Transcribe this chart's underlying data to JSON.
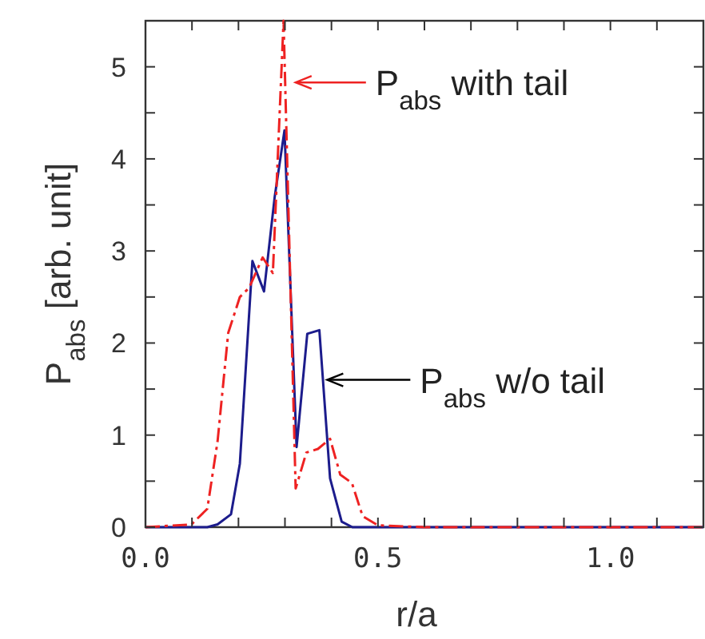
{
  "chart_data": {
    "type": "line",
    "xlabel": "r/a",
    "ylabel": "P$_{abs}$ [arb. unit]",
    "xlim": [
      0,
      1.2
    ],
    "ylim": [
      0,
      5.5
    ],
    "xticks": [
      {
        "value": 0,
        "label": "0.0"
      },
      {
        "value": 0.1,
        "label": null
      },
      {
        "value": 0.2,
        "label": null
      },
      {
        "value": 0.3,
        "label": null
      },
      {
        "value": 0.4,
        "label": null
      },
      {
        "value": 0.5,
        "label": "0.5"
      },
      {
        "value": 0.6,
        "label": null
      },
      {
        "value": 0.7,
        "label": null
      },
      {
        "value": 0.8,
        "label": null
      },
      {
        "value": 0.9,
        "label": null
      },
      {
        "value": 1.0,
        "label": "1.0"
      },
      {
        "value": 1.1,
        "label": null
      }
    ],
    "yticks": [
      0,
      {
        "value": 0.5,
        "label": null
      },
      1,
      {
        "value": 1.5,
        "label": null
      },
      2,
      {
        "value": 2.5,
        "label": null
      },
      3,
      {
        "value": 3.5,
        "label": null
      },
      4,
      {
        "value": 4.5,
        "label": null
      },
      5
    ],
    "grid": false,
    "marker": "none",
    "series": [
      {
        "color": "#1c1c8c",
        "line_style": "solid",
        "x": [
          0,
          0.133,
          0.155,
          0.184,
          0.203,
          0.23,
          0.255,
          0.278,
          0.299,
          0.325,
          0.348,
          0.374,
          0.397,
          0.422,
          0.445,
          0.6,
          0.8,
          1.0,
          1.2
        ],
        "values": [
          0,
          0,
          0.03,
          0.14,
          0.69,
          2.89,
          2.56,
          3.59,
          4.31,
          0.87,
          2.1,
          2.14,
          0.53,
          0.06,
          0,
          0,
          0,
          0,
          0
        ]
      },
      {
        "color": "#ee2222",
        "line_style": "dashed",
        "x": [
          0,
          0.099,
          0.133,
          0.155,
          0.178,
          0.203,
          0.223,
          0.252,
          0.274,
          0.297,
          0.323,
          0.346,
          0.371,
          0.397,
          0.419,
          0.444,
          0.467,
          0.5,
          0.6,
          0.8,
          1.0,
          1.2
        ],
        "values": [
          0,
          0.03,
          0.2,
          0.93,
          2.11,
          2.5,
          2.6,
          2.93,
          2.76,
          5.5,
          0.42,
          0.81,
          0.85,
          0.96,
          0.57,
          0.48,
          0.12,
          0.02,
          0,
          0,
          0,
          0
        ]
      }
    ],
    "annotations": [
      {
        "text": "P$_{abs}$ with tail",
        "x": 0.316,
        "y": 4.83
      },
      {
        "text": "P$_{abs}$ w/o tail",
        "x": 0.384,
        "y": 1.6
      }
    ]
  }
}
